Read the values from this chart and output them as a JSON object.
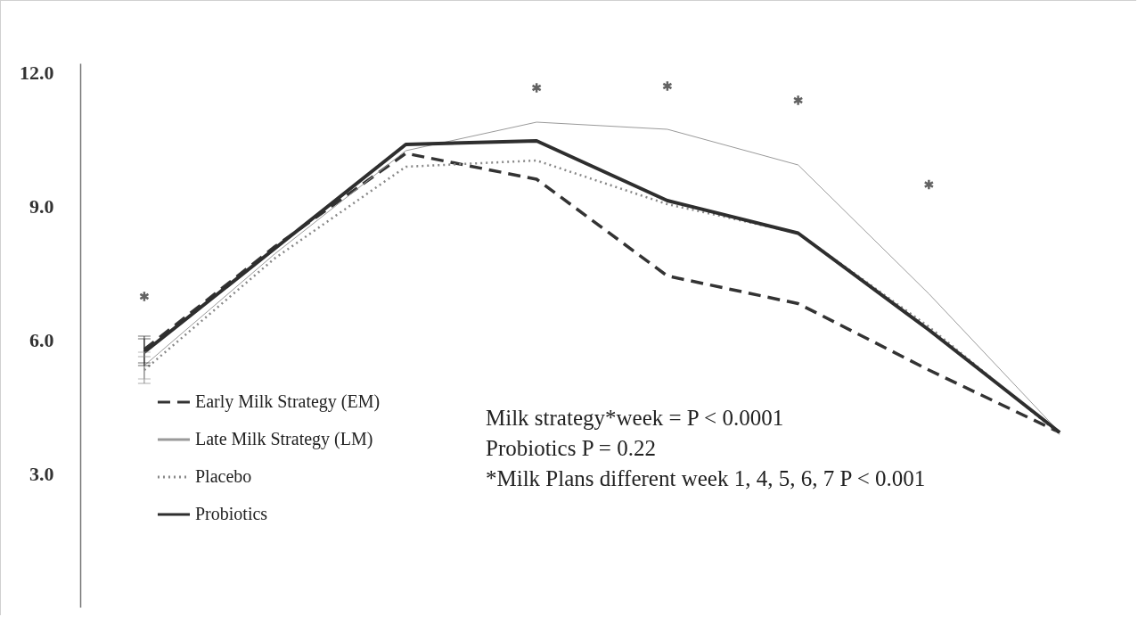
{
  "chart_data": {
    "type": "line",
    "categories": [
      null,
      null,
      null,
      null,
      null,
      null,
      null,
      null
    ],
    "ylim": [
      0,
      12.2
    ],
    "yticks": [
      {
        "value": 3,
        "label": "3.0"
      },
      {
        "value": 6,
        "label": "6.0"
      },
      {
        "value": 9,
        "label": "9.0"
      },
      {
        "value": 12,
        "label": "12.0"
      }
    ],
    "tick_labels": "y",
    "grid": false,
    "legend": "bottom left",
    "series": [
      {
        "name": "Early Milk Strategy (EM)",
        "color": "#333333",
        "line_style": "dashed",
        "marker": "none",
        "values": [
          5.78,
          8.09,
          10.18,
          9.6,
          7.43,
          6.81,
          5.32,
          3.92
        ],
        "errors": [
          0.3,
          null,
          null,
          null,
          null,
          null,
          null,
          null
        ]
      },
      {
        "name": "Late Milk Strategy (LM)",
        "color": "#9a9a9a",
        "line_style": "solid",
        "marker": "none",
        "values": [
          5.42,
          7.93,
          10.24,
          10.88,
          10.72,
          9.92,
          7.03,
          3.92
        ],
        "errors": [
          0.3,
          null,
          null,
          null,
          null,
          null,
          null,
          null
        ]
      },
      {
        "name": "Placebo",
        "color": "#888888",
        "line_style": "dotted",
        "marker": "none",
        "values": [
          5.32,
          7.83,
          9.88,
          10.02,
          9.04,
          8.39,
          6.29,
          3.88
        ],
        "errors": [
          0.3,
          null,
          null,
          null,
          null,
          null,
          null,
          null
        ]
      },
      {
        "name": "Probiotics",
        "color": "#2e2e2e",
        "line_style": "solid",
        "marker": "none",
        "values": [
          5.72,
          8.05,
          10.38,
          10.46,
          9.12,
          8.39,
          6.22,
          3.92
        ],
        "errors": [
          0.3,
          null,
          null,
          null,
          null,
          null,
          null,
          null
        ]
      },
      {
        "type": "scatter",
        "color": "#222222",
        "marker": "cross",
        "values": [
          6.97,
          null,
          null,
          11.65,
          11.69,
          11.37,
          9.48,
          null
        ]
      }
    ],
    "annotations": [
      "Milk strategy*week = P < 0.0001",
      "Probiotics P = 0.22",
      "*Milk Plans different week 1, 4, 5, 6, 7 P < 0.001"
    ]
  }
}
